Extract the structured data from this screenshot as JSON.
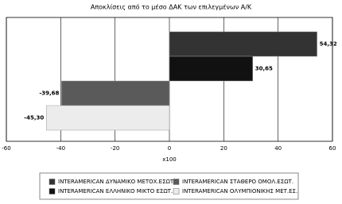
{
  "chart_data": {
    "type": "bar",
    "orientation": "horizontal",
    "title": "Αποκλίσεις από το μέσο ΔΑΚ των επιλεγμένων Α/Κ",
    "xlabel": "x100",
    "xlim": [
      -60,
      60
    ],
    "xticks": [
      -60,
      -40,
      -20,
      0,
      20,
      40,
      60
    ],
    "grid": true,
    "series": [
      {
        "name": "INTERAMERICAN ΔΥΝΑΜΙΚΟ ΜΕΤΟΧ.ΕΣΩΤ.",
        "color": "#333333",
        "values": [
          54.32
        ],
        "value_labels": [
          "54,32"
        ]
      },
      {
        "name": "INTERAMERICAN ΕΛΛΗΝΙΚΟ ΜΙΚΤΟ ΕΣΩΤ.",
        "color": "#111111",
        "values": [
          30.65
        ],
        "value_labels": [
          "30,65"
        ]
      },
      {
        "name": "INTERAMERICAN ΣΤΑΘΕΡΟ ΟΜΟΛ.ΕΣΩΤ.",
        "color": "#5a5a5a",
        "values": [
          -39.68
        ],
        "value_labels": [
          "-39,68"
        ]
      },
      {
        "name": "INTERAMERICAN ΟΛΥΜΠΙΟΝΙΚΗΣ ΜΕΤ.ΕΣ.",
        "color": "#ececec",
        "values": [
          -45.3
        ],
        "value_labels": [
          "-45,30"
        ]
      }
    ]
  }
}
